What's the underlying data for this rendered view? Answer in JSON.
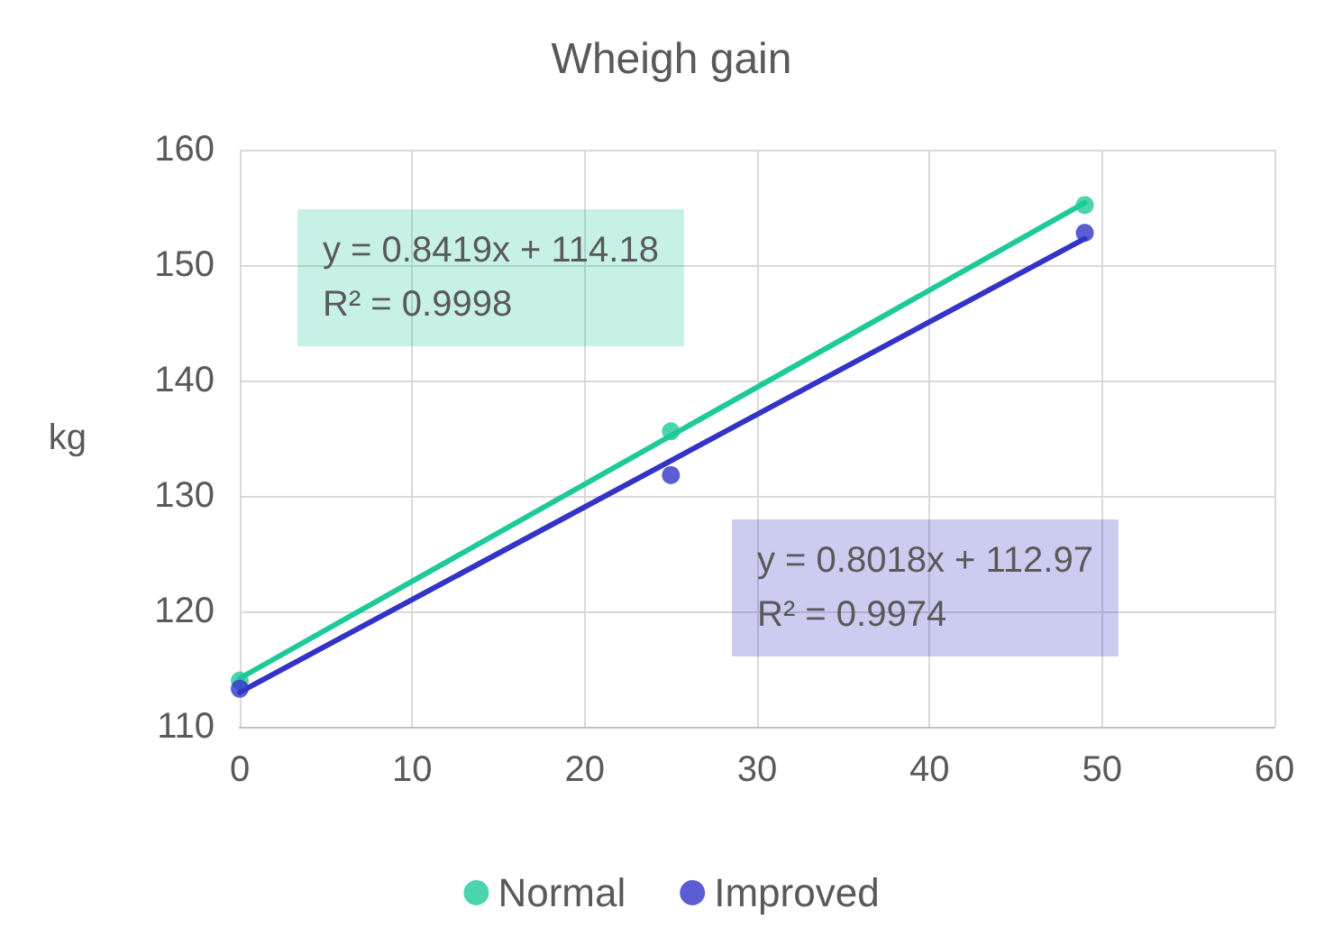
{
  "chart_data": {
    "type": "scatter",
    "title": "Wheigh gain",
    "ylabel": "kg",
    "series": [
      {
        "name": "Normal",
        "color": "#1ec99a",
        "marker": "circle",
        "x": [
          0,
          25,
          49
        ],
        "values": [
          114,
          135.6,
          155.2
        ]
      },
      {
        "name": "Improved",
        "color": "#3333c8",
        "marker": "circle",
        "x": [
          0,
          25,
          49
        ],
        "values": [
          113.3,
          131.8,
          152.8
        ]
      },
      {
        "type": "line",
        "color": "#1ec99a",
        "marker": "none",
        "x": [
          0,
          49
        ],
        "values": [
          114.2,
          155.4
        ]
      },
      {
        "type": "line",
        "color": "#3333c8",
        "marker": "none",
        "x": [
          0,
          49
        ],
        "values": [
          113.0,
          152.3
        ]
      }
    ],
    "annotations": [
      "y = 0.8419x + 114.18\nR² = 0.9998",
      "y = 0.8018x + 112.97\nR² = 0.9974"
    ],
    "xlim": [
      0,
      60
    ],
    "xticks": [
      0,
      10,
      20,
      30,
      40,
      50,
      60
    ],
    "ylim": [
      110,
      160
    ],
    "yticks": [
      110,
      120,
      130,
      140,
      150,
      160
    ],
    "grid": true,
    "legend": "bottom",
    "line_style": "solid"
  }
}
